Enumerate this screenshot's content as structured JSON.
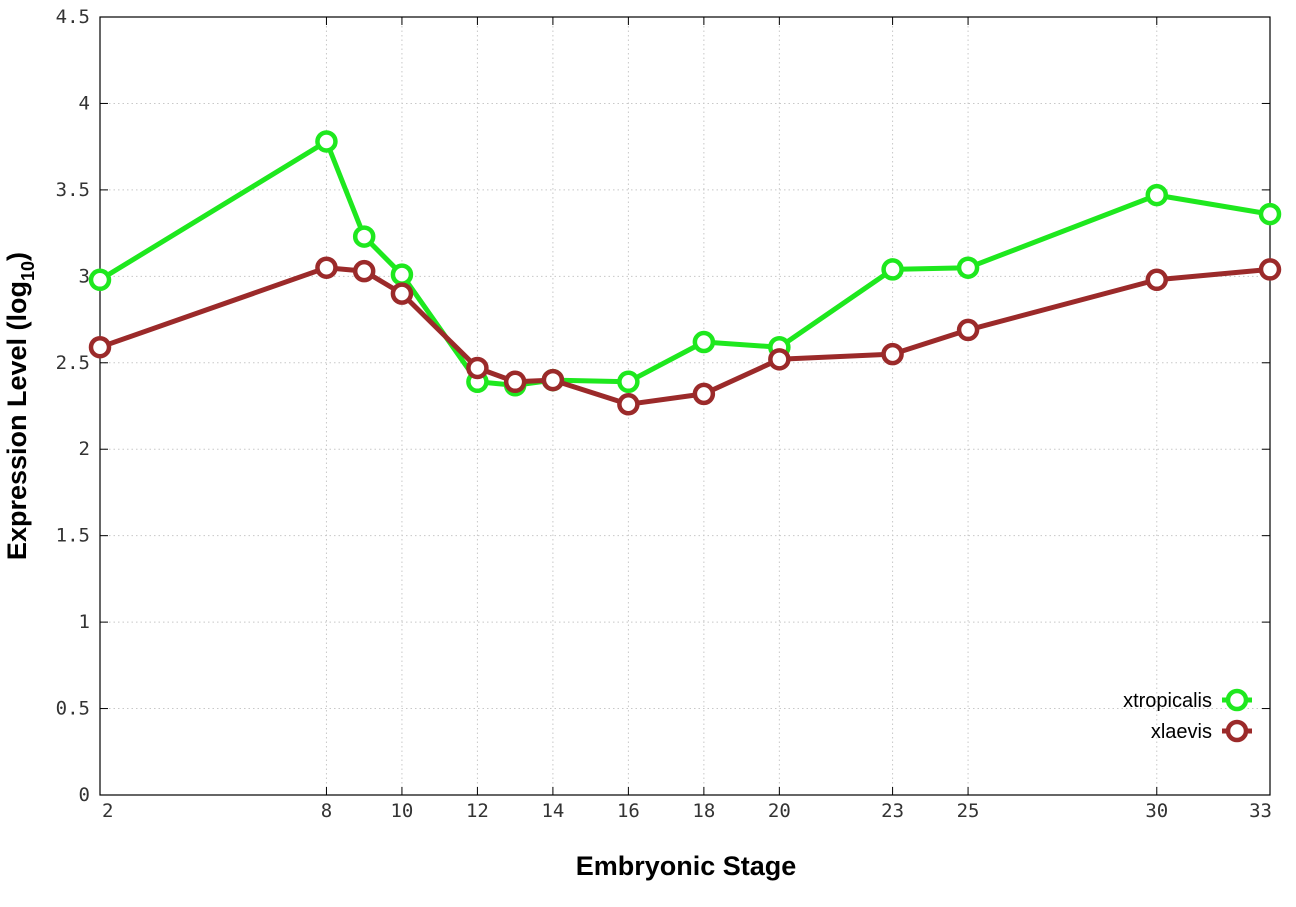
{
  "chart_data": {
    "type": "line",
    "title": "",
    "xlabel": "Embryonic Stage",
    "ylabel": "Expression Level (log",
    "ylabel_subscript": "10",
    "ylabel_suffix": ")",
    "x": [
      2,
      8,
      9,
      10,
      12,
      13,
      14,
      16,
      18,
      20,
      23,
      25,
      30,
      33
    ],
    "xticks": [
      2,
      8,
      10,
      12,
      14,
      16,
      18,
      20,
      23,
      25,
      30,
      33
    ],
    "xtick_labels": [
      "2",
      "8",
      "10",
      "12",
      "14",
      "16",
      "18",
      "20",
      "23",
      "25",
      "30",
      "33"
    ],
    "xlim": [
      2,
      33
    ],
    "ylim": [
      0,
      4.5
    ],
    "yticks": [
      0,
      0.5,
      1,
      1.5,
      2,
      2.5,
      3,
      3.5,
      4,
      4.5
    ],
    "ytick_labels": [
      "0",
      "0.5",
      "1",
      "1.5",
      "2",
      "2.5",
      "3",
      "3.5",
      "4",
      "4.5"
    ],
    "grid": true,
    "legend_position": "bottom-right",
    "series": [
      {
        "name": "xtropicalis",
        "color": "#1ee81e",
        "values": [
          2.98,
          3.78,
          3.23,
          3.01,
          2.39,
          2.37,
          2.4,
          2.39,
          2.62,
          2.59,
          3.04,
          3.05,
          3.47,
          3.36
        ]
      },
      {
        "name": "xlaevis",
        "color": "#9b2a2a",
        "values": [
          2.59,
          3.05,
          3.03,
          2.9,
          2.47,
          2.39,
          2.4,
          2.26,
          2.32,
          2.52,
          2.55,
          2.69,
          2.98,
          3.04
        ]
      }
    ]
  }
}
